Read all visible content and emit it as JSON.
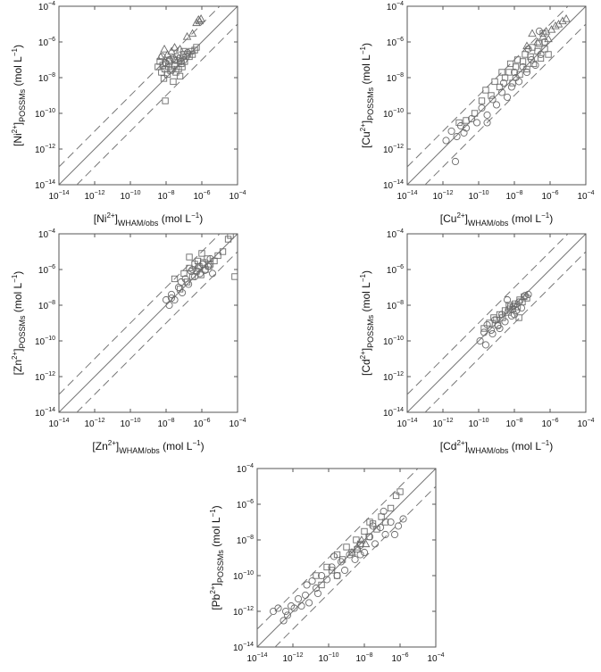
{
  "figure": {
    "colors": {
      "marker_stroke": "#6a6a6a",
      "line": "#777777",
      "axes": "#555555"
    }
  },
  "chart_data": [
    {
      "type": "scatter",
      "panel": "ni",
      "title": "",
      "xlabel": {
        "base": "[Ni",
        "sup": "2+",
        "close": "]",
        "sub": "WHAM/obs",
        "unit_pre": " (mol L",
        "unit_sup": "−1",
        "unit_post": ")"
      },
      "ylabel": {
        "base": "[Ni",
        "sup": "2+",
        "close": "]",
        "sub": "POSSMs",
        "unit_pre": " (mol L",
        "unit_sup": "−1",
        "unit_post": ")"
      },
      "xscale": "log",
      "yscale": "log",
      "xlim": [
        1e-14,
        0.0001
      ],
      "ylim": [
        1e-14,
        0.0001
      ],
      "xticks": [
        -14,
        -12,
        -10,
        -8,
        -6,
        -4
      ],
      "yticks": [
        -14,
        -12,
        -10,
        -8,
        -6,
        -4
      ],
      "tick_base": "10",
      "reference_lines": {
        "identity": true,
        "dashed_offset_log10": 1
      },
      "series": [
        {
          "marker": "square",
          "x": [
            3.5e-09,
            4.5e-09,
            5.5e-09,
            6.5e-09,
            7.5e-09,
            8.5e-09,
            1e-08,
            1.2e-08,
            1.4e-08,
            1.6e-08,
            1.8e-08,
            2.1e-08,
            2.5e-08,
            3e-08,
            3.5e-08,
            4e-08,
            5e-08,
            6e-08,
            7e-08,
            8e-08,
            9.5e-08,
            1.1e-07,
            1.3e-07,
            1.6e-07,
            2e-07,
            2.5e-07,
            3e-07,
            4e-07,
            5e-07,
            6e-08,
            9e-09,
            3e-08,
            1e-07
          ],
          "y": [
            4e-08,
            8e-08,
            2e-08,
            5e-08,
            9e-09,
            3e-08,
            6e-08,
            1.5e-08,
            4e-08,
            8e-08,
            2.5e-08,
            3e-08,
            6e-09,
            5e-08,
            2e-08,
            9e-08,
            3e-08,
            1.2e-08,
            6e-08,
            4e-08,
            2e-07,
            8e-08,
            1.5e-07,
            2e-07,
            1.5e-07,
            3e-07,
            2e-07,
            3.5e-07,
            5e-07,
            1.2e-07,
            5e-10,
            1e-07,
            3e-07
          ]
        },
        {
          "marker": "circle",
          "x": [
            6e-09,
            9e-09,
            1.5e-08,
            2.5e-08,
            4e-08,
            7e-08,
            1e-07,
            1.6e-07
          ],
          "y": [
            1.5e-07,
            7e-08,
            1e-07,
            1.2e-07,
            1.5e-07,
            8e-08,
            1e-07,
            2.5e-07
          ]
        },
        {
          "marker": "triangle",
          "x": [
            5e-09,
            8e-09,
            1.2e-08,
            2e-08,
            3e-08,
            6e-08,
            1.5e-07,
            3e-07,
            5e-07,
            6.5e-07,
            7.5e-07,
            9e-07
          ],
          "y": [
            1.5e-07,
            4e-07,
            2e-07,
            3e-07,
            5e-07,
            4e-07,
            2e-06,
            3e-06,
            1.2e-05,
            1.8e-05,
            1.5e-05,
            2e-05
          ]
        }
      ]
    },
    {
      "type": "scatter",
      "panel": "cu",
      "title": "",
      "xlabel": {
        "base": "[Cu",
        "sup": "2+",
        "close": "]",
        "sub": "WHAM/obs",
        "unit_pre": " (mol L",
        "unit_sup": "−1",
        "unit_post": ")"
      },
      "ylabel": {
        "base": "[Cu",
        "sup": "2+",
        "close": "]",
        "sub": "POSSMs",
        "unit_pre": " (mol L",
        "unit_sup": "−1",
        "unit_post": ")"
      },
      "xscale": "log",
      "yscale": "log",
      "xlim": [
        1e-14,
        0.0001
      ],
      "ylim": [
        1e-14,
        0.0001
      ],
      "xticks": [
        -14,
        -12,
        -10,
        -8,
        -6,
        -4
      ],
      "yticks": [
        -14,
        -12,
        -10,
        -8,
        -6,
        -4
      ],
      "tick_base": "10",
      "reference_lines": {
        "identity": true,
        "dashed_offset_log10": 1
      },
      "series": [
        {
          "marker": "square",
          "x": [
            8e-12,
            2e-11,
            6e-11,
            1.5e-10,
            2.5e-10,
            5e-10,
            8e-10,
            1.5e-09,
            3e-09,
            5e-09,
            8e-09,
            1.2e-08,
            2e-08,
            3e-08,
            5e-08,
            8e-08,
            1.2e-07,
            2e-07,
            3e-07,
            5e-07,
            8e-07,
            2e-09,
            6e-09,
            1.5e-08,
            4e-08,
            1e-07,
            2.5e-07,
            4e-07
          ],
          "y": [
            3e-11,
            4e-11,
            1e-10,
            5e-10,
            2e-09,
            1e-09,
            6e-09,
            3e-09,
            1e-08,
            2e-08,
            5e-09,
            4e-08,
            1.5e-08,
            8e-08,
            3e-08,
            1.5e-07,
            6e-08,
            3e-07,
            1.2e-07,
            4e-07,
            2e-07,
            2e-08,
            6e-08,
            1e-07,
            2e-07,
            5e-07,
            8e-07,
            3e-06
          ]
        },
        {
          "marker": "circle",
          "x": [
            1.5e-12,
            3e-12,
            6e-12,
            1e-11,
            2e-11,
            4e-11,
            8e-11,
            1.5e-10,
            3e-10,
            6e-10,
            1e-09,
            2e-09,
            4e-09,
            7e-09,
            1e-08,
            1.8e-08,
            3e-08,
            5e-08,
            9e-08,
            1.5e-07,
            3e-07,
            5e-07,
            5e-12,
            1.5e-11,
            3e-10,
            2.5e-09,
            1.2e-08,
            6e-08,
            2.5e-07
          ],
          "y": [
            3e-12,
            1e-11,
            5e-12,
            2e-11,
            1.5e-11,
            5e-11,
            3e-11,
            2e-10,
            8e-11,
            6e-10,
            3e-10,
            1.5e-09,
            8e-10,
            3e-09,
            2e-08,
            6e-09,
            4e-08,
            2e-08,
            1e-07,
            5e-08,
            2e-07,
            1e-06,
            2e-13,
            8e-12,
            3e-11,
            5e-09,
            1e-08,
            4e-07,
            4e-06
          ]
        },
        {
          "marker": "triangle",
          "x": [
            2e-07,
            4e-07,
            6e-07,
            8e-07,
            1.2e-06,
            2e-06,
            3e-06,
            5e-06,
            8e-06,
            5e-08,
            1e-07
          ],
          "y": [
            1e-06,
            2e-06,
            4e-06,
            1.5e-06,
            5e-06,
            8e-06,
            1e-05,
            1.5e-05,
            2e-05,
            6e-07,
            3e-06
          ]
        }
      ]
    },
    {
      "type": "scatter",
      "panel": "zn",
      "title": "",
      "xlabel": {
        "base": "[Zn",
        "sup": "2+",
        "close": "]",
        "sub": "WHAM/obs",
        "unit_pre": " (mol L",
        "unit_sup": "−1",
        "unit_post": ")"
      },
      "ylabel": {
        "base": "[Zn",
        "sup": "2+",
        "close": "]",
        "sub": "POSSMs",
        "unit_pre": " (mol L",
        "unit_sup": "−1",
        "unit_post": ")"
      },
      "xscale": "log",
      "yscale": "log",
      "xlim": [
        1e-14,
        0.0001
      ],
      "ylim": [
        1e-14,
        0.0001
      ],
      "xticks": [
        -14,
        -12,
        -10,
        -8,
        -6,
        -4
      ],
      "yticks": [
        -14,
        -12,
        -10,
        -8,
        -6,
        -4
      ],
      "tick_base": "10",
      "reference_lines": {
        "identity": true,
        "dashed_offset_log10": 1
      },
      "series": [
        {
          "marker": "square",
          "x": [
            3e-08,
            6e-08,
            1e-07,
            1.5e-07,
            2e-07,
            3e-07,
            4e-07,
            5e-07,
            7e-07,
            9e-07,
            1.2e-06,
            1.6e-06,
            2e-06,
            3e-06,
            5e-06,
            8e-06,
            1.5e-05,
            3e-05,
            4e-05,
            7e-05,
            2e-07,
            6e-07,
            1e-06,
            2.5e-06
          ],
          "y": [
            3e-07,
            8e-08,
            6e-07,
            2e-07,
            1.2e-06,
            4e-07,
            2e-06,
            8e-07,
            1.5e-06,
            5e-07,
            2.5e-06,
            1e-06,
            4e-06,
            2e-06,
            3e-06,
            6e-06,
            1e-05,
            5e-05,
            8e-05,
            4e-07,
            5e-06,
            3e-06,
            8e-06,
            1.5e-06
          ]
        },
        {
          "marker": "circle",
          "x": [
            1e-08,
            1.5e-08,
            2e-08,
            3e-08,
            5e-08,
            8e-08,
            1.2e-07,
            1.8e-07,
            2.5e-07,
            4e-07,
            6e-07,
            8e-07,
            1.1e-06,
            1.5e-06,
            2.2e-06,
            3e-06,
            4e-06,
            2e-08,
            7e-08,
            3e-07
          ],
          "y": [
            2e-08,
            1e-08,
            4e-08,
            2e-08,
            1e-07,
            5e-08,
            3e-07,
            1.5e-07,
            8e-07,
            4e-07,
            1.2e-06,
            6e-07,
            2e-06,
            9e-07,
            1.5e-06,
            4e-06,
            6e-07,
            2.5e-08,
            2e-07,
            1e-06
          ]
        }
      ]
    },
    {
      "type": "scatter",
      "panel": "cd",
      "title": "",
      "xlabel": {
        "base": "[Cd",
        "sup": "2+",
        "close": "]",
        "sub": "WHAM/obs",
        "unit_pre": " (mol L",
        "unit_sup": "−1",
        "unit_post": ")"
      },
      "ylabel": {
        "base": "[Cd",
        "sup": "2+",
        "close": "]",
        "sub": "POSSMs",
        "unit_pre": " (mol L",
        "unit_sup": "−1",
        "unit_post": ")"
      },
      "xscale": "log",
      "yscale": "log",
      "xlim": [
        1e-14,
        0.0001
      ],
      "ylim": [
        1e-14,
        0.0001
      ],
      "xticks": [
        -14,
        -12,
        -10,
        -8,
        -6,
        -4
      ],
      "yticks": [
        -14,
        -12,
        -10,
        -8,
        -6,
        -4
      ],
      "tick_base": "10",
      "reference_lines": {
        "identity": true,
        "dashed_offset_log10": 1
      },
      "series": [
        {
          "marker": "square",
          "x": [
            2e-10,
            4e-10,
            7e-10,
            1e-09,
            1.5e-09,
            2.2e-09,
            3e-09,
            4.5e-09,
            6e-09,
            8e-09,
            1.1e-08,
            1.5e-08,
            2e-08,
            2.8e-08,
            3.5e-08,
            5e-08,
            1.2e-09,
            5e-09,
            1.8e-08
          ],
          "y": [
            5e-10,
            1e-09,
            2e-09,
            1.5e-09,
            3e-09,
            2e-09,
            5e-09,
            4e-09,
            8e-09,
            6e-09,
            1.2e-08,
            8e-09,
            2e-08,
            1.5e-08,
            3e-08,
            2.5e-08,
            8e-10,
            1e-08,
            2e-09
          ]
        },
        {
          "marker": "circle",
          "x": [
            1.2e-10,
            2e-10,
            3e-10,
            5e-10,
            8e-10,
            1.2e-09,
            2e-09,
            3e-09,
            5e-09,
            7e-09,
            9e-09,
            1.3e-08,
            1.8e-08,
            2.5e-08,
            4e-08,
            6e-08,
            2.5e-10,
            6e-10,
            1.5e-09,
            4e-09,
            1e-08
          ],
          "y": [
            1e-10,
            3e-10,
            8e-10,
            4e-10,
            1.5e-09,
            7e-10,
            3e-09,
            1.2e-09,
            6e-09,
            2.5e-09,
            9e-09,
            5e-09,
            1.5e-08,
            7e-09,
            3.5e-08,
            4e-08,
            6e-11,
            2.5e-10,
            5e-10,
            2e-08,
            3e-09
          ]
        }
      ]
    },
    {
      "type": "scatter",
      "panel": "pb",
      "title": "",
      "xlabel": {
        "base": "[Pb",
        "sup": "2+",
        "close": "]",
        "sub": "WHAM/obs",
        "unit_pre": " (mol L",
        "unit_sup": "−1",
        "unit_post": ")"
      },
      "ylabel": {
        "base": "[Pb",
        "sup": "2+",
        "close": "]",
        "sub": "POSSMs",
        "unit_pre": " (mol L",
        "unit_sup": "−1",
        "unit_post": ")"
      },
      "xscale": "log",
      "yscale": "log",
      "xlim": [
        1e-14,
        0.0001
      ],
      "ylim": [
        1e-14,
        0.0001
      ],
      "xticks": [
        -14,
        -12,
        -10,
        -8,
        -6,
        -4
      ],
      "yticks": [
        -14,
        -12,
        -10,
        -8,
        -6,
        -4
      ],
      "tick_base": "10",
      "reference_lines": {
        "identity": true,
        "dashed_offset_log10": 1
      },
      "series": [
        {
          "marker": "square",
          "x": [
            2e-11,
            4e-11,
            8e-11,
            1.5e-10,
            3e-10,
            6e-10,
            1e-09,
            2e-09,
            3.5e-09,
            6e-09,
            1e-08,
            1.8e-08,
            3e-08,
            5e-08,
            9e-08,
            1.5e-07,
            3e-07,
            6e-07,
            1e-06,
            3e-10,
            4e-09,
            2e-08
          ],
          "y": [
            1e-10,
            3e-11,
            3e-10,
            2e-10,
            1.5e-09,
            8e-10,
            4e-09,
            2e-09,
            1e-08,
            6e-09,
            3e-08,
            1.5e-08,
            8e-08,
            4e-08,
            2e-07,
            1e-07,
            6e-07,
            3e-06,
            5e-06,
            1e-10,
            3e-09,
            1e-07
          ]
        },
        {
          "marker": "circle",
          "x": [
            8e-14,
            1.5e-13,
            3e-13,
            5e-13,
            8e-13,
            1.2e-12,
            2e-12,
            3e-12,
            5e-12,
            8e-12,
            1.2e-11,
            2e-11,
            4e-11,
            8e-11,
            1.5e-10,
            3e-10,
            5e-10,
            8e-10,
            1.5e-09,
            3e-09,
            6e-09,
            1e-08,
            2e-08,
            4e-08,
            8e-08,
            1.5e-07,
            3e-07,
            5e-07,
            8e-07,
            1.5e-06,
            4e-13,
            6e-12,
            2.5e-11,
            2e-10,
            6e-09,
            3e-08,
            1.2e-07
          ],
          "y": [
            1e-12,
            1.5e-12,
            3e-13,
            6e-13,
            2e-12,
            1.5e-12,
            5e-12,
            2e-12,
            8e-12,
            3e-12,
            5e-11,
            2e-11,
            1e-10,
            6e-11,
            3e-10,
            1e-10,
            6e-10,
            2e-10,
            1.5e-09,
            8e-10,
            5e-09,
            2e-09,
            1.5e-08,
            6e-09,
            5e-08,
            2e-08,
            1e-07,
            2e-08,
            6e-08,
            1.5e-07,
            1e-12,
            3e-11,
            1e-11,
            1.2e-09,
            1.5e-09,
            6e-08,
            4e-07
          ]
        },
        {
          "marker": "triangle",
          "x": [
            2e-09,
            4e-09,
            7e-09,
            1.2e-08
          ],
          "y": [
            2e-09,
            4e-09,
            1e-08,
            6e-09
          ]
        }
      ]
    }
  ]
}
